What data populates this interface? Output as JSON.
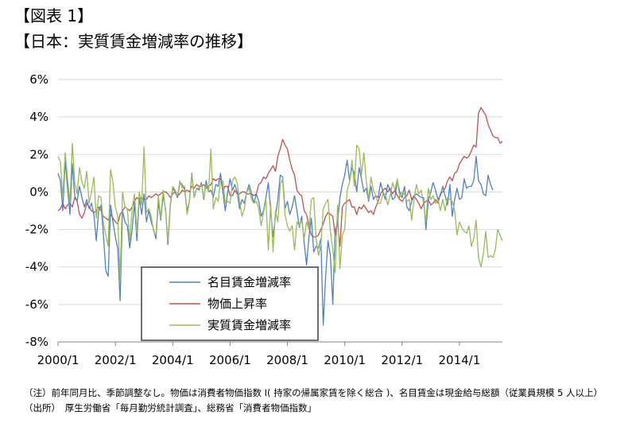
{
  "header": {
    "figure_label": "【図表 1】",
    "title": "【日本：実質賃金増減率の推移】"
  },
  "notes": {
    "note": "（注）前年同月比、季節調整なし。物価は消費者物価指数 I( 持家の帰属家賃を除く総合 )、名目賃金は現金給与総額（従業員規模 5 人以上）",
    "source": "（出所）　厚生労働省「毎月勤労統計調査」、総務省「消費者物価指数」"
  },
  "chart_data": {
    "type": "line",
    "title": "",
    "xlabel": "",
    "ylabel": "",
    "ylim": [
      -8,
      6
    ],
    "yticks": [
      6,
      4,
      2,
      0,
      -2,
      -4,
      -6,
      -8
    ],
    "ytick_labels": [
      "6%",
      "4%",
      "2%",
      "0%",
      "-2%",
      "-4%",
      "-6%",
      "-8%"
    ],
    "xlim": [
      2000.0,
      2015.5
    ],
    "xticks": [
      2000,
      2002,
      2004,
      2006,
      2008,
      2010,
      2012,
      2014
    ],
    "xtick_labels": [
      "2000/1",
      "2002/1",
      "2004/1",
      "2006/1",
      "2008/1",
      "2010/1",
      "2012/1",
      "2014/1"
    ],
    "grid": "horizontal",
    "legend_position": "bottom-center",
    "start": "2000/1",
    "frequency": "monthly",
    "series": [
      {
        "name": "名目賃金増減率",
        "color": "#4F81BD",
        "values": [
          1.0,
          0.6,
          -1.0,
          1.7,
          0.2,
          -1.2,
          1.5,
          -0.2,
          -0.5,
          0.3,
          -0.3,
          -0.8,
          -0.4,
          -0.9,
          -0.6,
          -1.2,
          -2.6,
          -1.0,
          -0.7,
          -2.3,
          -4.2,
          -4.5,
          -0.7,
          -1.6,
          -2.4,
          -3.0,
          -5.8,
          -1.0,
          -1.6,
          -1.8,
          -3.0,
          -2.0,
          -0.6,
          -2.6,
          -0.3,
          -1.2,
          -0.1,
          -1.6,
          -1.0,
          -1.6,
          -2.0,
          -2.5,
          -0.5,
          -1.5,
          -0.2,
          -0.9,
          -2.8,
          -0.7,
          0.2,
          0.0,
          -0.3,
          0.5,
          0.4,
          0.1,
          -1.0,
          -0.5,
          1.0,
          -0.3,
          0.2,
          0.1,
          0.5,
          -0.4,
          0.6,
          0.0,
          0.1,
          -0.3,
          0.4,
          0.3,
          1.0,
          0.0,
          -1.0,
          0.0,
          0.7,
          0.1,
          0.4,
          0.0,
          -0.9,
          -0.4,
          -0.6,
          0.0,
          0.4,
          -0.1,
          -0.6,
          -0.1,
          -0.5,
          -1.3,
          -1.0,
          -0.3,
          0.5,
          -1.0,
          -2.4,
          -1.3,
          -0.4,
          0.9,
          0.8,
          -0.9,
          -0.5,
          -1.2,
          -0.8,
          -0.2,
          -1.0,
          -1.9,
          -1.3,
          -2.7,
          -3.9,
          -2.4,
          -1.4,
          -3.2,
          -2.9,
          -3.0,
          -2.5,
          -7.1,
          -4.5,
          -2.6,
          -3.4,
          -6.0,
          -2.1,
          -1.6,
          -0.3,
          0.4,
          0.9,
          1.7,
          0.6,
          1.3,
          1.0,
          0.0,
          1.3,
          0.7,
          0.0,
          0.2,
          -0.5,
          0.3,
          -0.4,
          -0.2,
          -0.3,
          0.5,
          0.0,
          -0.4,
          0.4,
          0.1,
          -0.4,
          -0.3,
          0.6,
          0.0,
          -0.3,
          0.3,
          -0.8,
          -1.0,
          -0.5,
          -0.2,
          -0.1,
          -0.2,
          -0.3,
          -0.3,
          -2.0,
          -0.4,
          0.0,
          0.5,
          0.1,
          -0.4,
          -0.2,
          0.3,
          -0.2,
          -0.7,
          0.4,
          -1.3,
          -0.4,
          0.2,
          -0.4,
          -0.3,
          0.7,
          0.2,
          0.3,
          0.3,
          0.6,
          1.9,
          0.6,
          0.4,
          -0.1,
          -0.2,
          0.9,
          0.4,
          0.1
        ]
      },
      {
        "name": "物価上昇率",
        "color": "#C0504D",
        "values": [
          -1.0,
          -0.9,
          -0.6,
          -0.9,
          -0.7,
          -0.6,
          -0.8,
          -0.3,
          -0.5,
          -1.2,
          -1.4,
          -1.1,
          -0.6,
          -0.8,
          -1.0,
          -1.1,
          -1.0,
          -0.8,
          -1.0,
          -1.3,
          -1.4,
          -1.5,
          -1.2,
          -1.4,
          -1.6,
          -1.7,
          -1.2,
          -1.0,
          -0.8,
          -0.9,
          -1.0,
          -0.8,
          -0.5,
          -0.3,
          -0.4,
          -0.3,
          -0.4,
          -0.4,
          -0.2,
          -0.3,
          -0.2,
          -0.1,
          -0.2,
          -0.1,
          0.0,
          0.0,
          -0.1,
          -0.3,
          -0.1,
          0.0,
          -0.2,
          -0.1,
          0.1,
          0.0,
          0.1,
          0.0,
          0.3,
          0.2,
          0.4,
          0.3,
          0.3,
          0.4,
          0.2,
          0.3,
          0.4,
          0.7,
          0.6,
          0.7,
          0.7,
          0.1,
          0.3,
          0.3,
          -0.2,
          -0.2,
          0.1,
          -0.1,
          -0.1,
          0.0,
          0.0,
          -0.1,
          -0.1,
          -0.1,
          -0.2,
          -0.1,
          0.4,
          0.5,
          0.8,
          0.7,
          1.0,
          1.2,
          1.4,
          1.1,
          1.9,
          2.3,
          2.8,
          2.5,
          2.3,
          1.7,
          1.2,
          0.9,
          0.1,
          -0.1,
          -0.2,
          -1.0,
          -1.2,
          -1.8,
          -2.3,
          -2.4,
          -2.4,
          -2.3,
          -2.0,
          -1.7,
          -1.3,
          -1.1,
          -1.2,
          -1.3,
          -2.3,
          -1.6,
          -2.9,
          -0.8,
          -0.6,
          -0.5,
          -0.4,
          -0.8,
          -0.8,
          -1.2,
          -0.8,
          -0.9,
          -0.7,
          -0.9,
          -1.1,
          -1.0,
          -1.2,
          -0.8,
          -0.5,
          -0.1,
          0.1,
          0.2,
          0.0,
          0.2,
          -0.1,
          0.1,
          -0.2,
          -0.4,
          -0.5,
          -0.3,
          -0.2,
          0.1,
          -0.4,
          -0.2,
          -0.4,
          -0.6,
          -0.9,
          -0.6,
          -0.5,
          -0.4,
          -0.7,
          -0.6,
          -0.4,
          -0.6,
          -0.1,
          0.0,
          0.2,
          0.6,
          0.8,
          0.6,
          1.0,
          1.1,
          1.5,
          1.7,
          1.9,
          1.8,
          1.9,
          2.2,
          2.5,
          2.4,
          4.2,
          4.5,
          4.3,
          4.1,
          3.6,
          3.3,
          3.0,
          2.9,
          2.9,
          2.6,
          2.7
        ]
      },
      {
        "name": "実質賃金増減率",
        "color": "#9BBB59",
        "values": [
          1.9,
          1.6,
          -0.3,
          2.1,
          0.7,
          -0.6,
          2.6,
          0.5,
          -0.1,
          1.3,
          0.5,
          0.2,
          1.1,
          -0.6,
          0.0,
          0.8,
          -1.4,
          -0.2,
          -0.3,
          -1.7,
          -2.3,
          -2.9,
          1.2,
          0.5,
          -0.8,
          -1.3,
          -4.7,
          0.0,
          -0.8,
          -0.9,
          -2.6,
          -0.9,
          -0.1,
          -2.2,
          0.0,
          -0.7,
          2.4,
          -1.1,
          -0.9,
          -1.3,
          -2.1,
          -2.3,
          -0.2,
          -1.4,
          0.1,
          -1.0,
          -2.6,
          -0.6,
          0.3,
          0.1,
          -0.2,
          0.6,
          0.2,
          0.3,
          -1.2,
          -0.5,
          0.9,
          -0.3,
          0.2,
          0.2,
          0.4,
          -0.3,
          0.4,
          0.0,
          2.3,
          -0.9,
          -0.3,
          -0.5,
          0.6,
          0.6,
          -0.6,
          -0.5,
          -0.6,
          0.6,
          0.8,
          0.5,
          -0.5,
          -1.3,
          -0.9,
          0.0,
          0.2,
          -0.4,
          -0.6,
          -0.5,
          -0.9,
          -1.8,
          -1.1,
          -0.4,
          -3.1,
          -0.6,
          -3.2,
          -1.0,
          -1.6,
          0.4,
          0.7,
          -1.2,
          -1.8,
          -2.1,
          -1.8,
          -3.1,
          -1.6,
          -1.8,
          -1.5,
          -2.5,
          -1.6,
          -2.0,
          -0.4,
          -0.3,
          -2.5,
          -3.4,
          -2.8,
          -0.9,
          -0.6,
          -0.4,
          -2.1,
          -3.1,
          -4.3,
          -0.7,
          -4.1,
          -2.3,
          -2.0,
          0.1,
          0.5,
          1.7,
          0.3,
          2.5,
          2.3,
          0.9,
          2.1,
          0.6,
          -0.4,
          0.8,
          0.1,
          -0.2,
          -0.6,
          -0.6,
          -0.1,
          -0.1,
          -0.7,
          -0.2,
          0.5,
          0.1,
          0.7,
          -0.3,
          0.0,
          -0.1,
          -0.5,
          -0.4,
          -1.5,
          -0.4,
          0.4,
          -0.1,
          0.1,
          -0.6,
          -1.6,
          0.2,
          -0.4,
          -0.2,
          -0.6,
          -0.4,
          -1.0,
          -0.4,
          -1.0,
          -0.3,
          -0.4,
          -0.5,
          -1.0,
          -2.3,
          -1.6,
          -1.9,
          -2.1,
          -2.2,
          -1.8,
          -2.9,
          -2.5,
          -1.5,
          -3.5,
          -4.0,
          -3.3,
          -2.1,
          -3.5,
          -3.4,
          -3.5,
          -3.1,
          -2.0,
          -2.3,
          -2.6
        ]
      }
    ]
  }
}
